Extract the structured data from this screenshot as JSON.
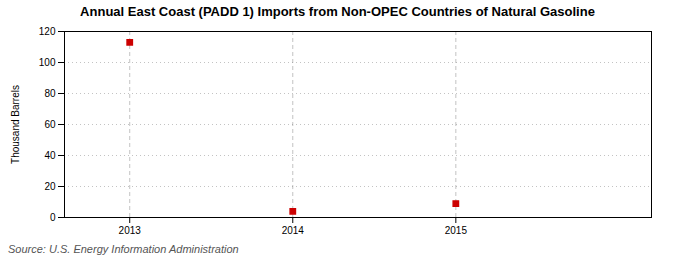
{
  "chart_data": {
    "type": "scatter",
    "title": "Annual East Coast (PADD 1) Imports from Non-OPEC Countries of Natural Gasoline",
    "ylabel": "Thousand Barrels",
    "caption": "Source: U.S. Energy Information Administration",
    "x": [
      2013,
      2014,
      2015
    ],
    "values": [
      113,
      4,
      9
    ],
    "color": "#cc0000",
    "marker": "square",
    "xlim": [
      2012.6,
      2016.2
    ],
    "xticks": [
      2013,
      2014,
      2015
    ],
    "ylim": [
      0,
      120
    ],
    "yticks": [
      0,
      20,
      40,
      60,
      80,
      100,
      120
    ],
    "grid": true
  }
}
